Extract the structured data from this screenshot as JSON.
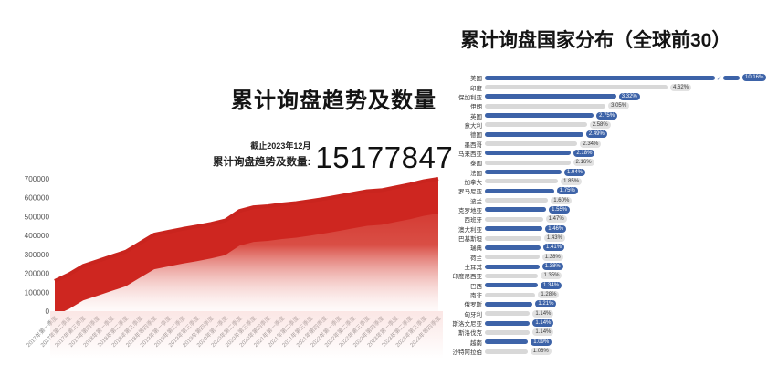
{
  "colors": {
    "area_red": "#ce2620",
    "area_line": "#c9241e",
    "bar_blue": "#3d63a8",
    "bar_gray": "#d8d8d8",
    "badge_blue_bg": "#3d63a8",
    "badge_blue_text": "#ffffff",
    "badge_gray_bg": "#e2e2e2",
    "badge_gray_text": "#3a3a3a"
  },
  "left": {
    "title": "累计询盘趋势及数量",
    "asof": "截止2023年12月",
    "total_label": "累计询盘趋势及数量:",
    "total_value": "15177847"
  },
  "right": {
    "title": "累计询盘国家分布（全球前30）"
  },
  "chart_data": [
    {
      "type": "area",
      "title": "累计询盘趋势及数量",
      "x": [
        "2017年第一季度",
        "2017年第二季度",
        "2017年第三季度",
        "2017年第四季度",
        "2018年第一季度",
        "2018年第二季度",
        "2018年第三季度",
        "2018年第四季度",
        "2019年第一季度",
        "2019年第二季度",
        "2019年第三季度",
        "2019年第四季度",
        "2020年第一季度",
        "2020年第二季度",
        "2020年第三季度",
        "2020年第四季度",
        "2021年第一季度",
        "2021年第二季度",
        "2021年第三季度",
        "2021年第四季度",
        "2022年第一季度",
        "2022年第二季度",
        "2022年第三季度",
        "2022年第四季度",
        "2023年第一季度",
        "2023年第二季度",
        "2023年第三季度",
        "2023年第四季度"
      ],
      "values": [
        160000,
        195000,
        240000,
        265000,
        290000,
        315000,
        360000,
        405000,
        420000,
        435000,
        448000,
        462000,
        480000,
        530000,
        550000,
        555000,
        565000,
        572000,
        583000,
        595000,
        608000,
        622000,
        635000,
        640000,
        655000,
        670000,
        688000,
        700000
      ],
      "ylim": [
        0,
        700000
      ],
      "y_ticks": [
        "0",
        "100000",
        "200000",
        "300000",
        "400000",
        "500000",
        "600000",
        "700000"
      ],
      "grid": false,
      "legend": "none"
    },
    {
      "type": "bar",
      "orientation": "horizontal",
      "title": "累计询盘国家分布（全球前30）",
      "unit": "%",
      "axis_break_first_bar": true,
      "categories": [
        "美国",
        "印度",
        "保加利亚",
        "伊朗",
        "英国",
        "意大利",
        "德国",
        "墨西哥",
        "马来西亚",
        "泰国",
        "法国",
        "加拿大",
        "罗马尼亚",
        "波兰",
        "克罗地亚",
        "西班牙",
        "澳大利亚",
        "巴基斯坦",
        "瑞典",
        "荷兰",
        "土耳其",
        "印度尼西亚",
        "巴西",
        "南非",
        "俄罗斯",
        "匈牙利",
        "斯洛文尼亚",
        "斯洛伐克",
        "越南",
        "沙特阿拉伯"
      ],
      "values": [
        10.16,
        4.62,
        3.32,
        3.05,
        2.75,
        2.58,
        2.49,
        2.34,
        2.18,
        2.16,
        1.94,
        1.85,
        1.75,
        1.6,
        1.55,
        1.47,
        1.46,
        1.43,
        1.41,
        1.38,
        1.38,
        1.35,
        1.34,
        1.28,
        1.21,
        1.14,
        1.14,
        1.14,
        1.09,
        1.08
      ],
      "labels": [
        "10.16%",
        "4.62%",
        "3.32%",
        "3.05%",
        "2.75%",
        "2.58%",
        "2.49%",
        "2.34%",
        "2.18%",
        "2.16%",
        "1.94%",
        "1.85%",
        "1.75%",
        "1.60%",
        "1.55%",
        "1.47%",
        "1.46%",
        "1.43%",
        "1.41%",
        "1.38%",
        "1.38%",
        "1.35%",
        "1.34%",
        "1.28%",
        "1.21%",
        "1.14%",
        "1.14%",
        "1.14%",
        "1.09%",
        "1.08%"
      ]
    }
  ]
}
